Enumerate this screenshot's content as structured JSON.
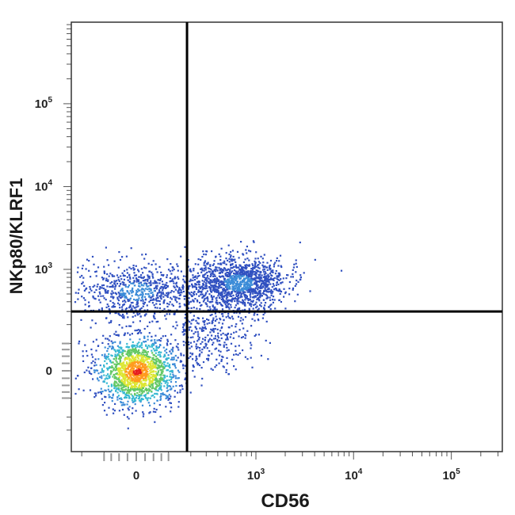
{
  "chart_data": {
    "type": "scatter",
    "subtype": "flow-cytometry-density-dot-plot",
    "xlabel": "CD56",
    "ylabel": "NKp80/KLRF1",
    "x_scale": "biexponential",
    "y_scale": "biexponential",
    "x_ticks": [
      {
        "value": 0,
        "base": "0",
        "exp": ""
      },
      {
        "value": 1000,
        "base": "10",
        "exp": "3"
      },
      {
        "value": 10000,
        "base": "10",
        "exp": "4"
      },
      {
        "value": 100000,
        "base": "10",
        "exp": "5"
      }
    ],
    "y_ticks": [
      {
        "value": 0,
        "base": "0",
        "exp": ""
      },
      {
        "value": 1000,
        "base": "10",
        "exp": "3"
      },
      {
        "value": 10000,
        "base": "10",
        "exp": "4"
      },
      {
        "value": 100000,
        "base": "10",
        "exp": "5"
      }
    ],
    "quadrant_gates": {
      "x": 180,
      "y": 300
    },
    "populations": [
      {
        "name": "",
        "center": [
          0,
          0
        ],
        "spread": [
          60,
          60
        ],
        "count": 1500,
        "density": "high"
      },
      {
        "name": "",
        "center": [
          0,
          550
        ],
        "spread": [
          90,
          280
        ],
        "count": 700,
        "density": "medium"
      },
      {
        "name": "",
        "center": [
          650,
          700
        ],
        "spread": [
          500,
          320
        ],
        "count": 1300,
        "density": "medium"
      },
      {
        "name": "",
        "center": [
          350,
          150
        ],
        "spread": [
          250,
          120
        ],
        "count": 350,
        "density": "low"
      }
    ],
    "density_colors": [
      "#3050c0",
      "#3c8cd8",
      "#37b9d2",
      "#64c864",
      "#dce632",
      "#ff9b1e",
      "#e61e1e"
    ],
    "grid": false,
    "legend": "none"
  }
}
